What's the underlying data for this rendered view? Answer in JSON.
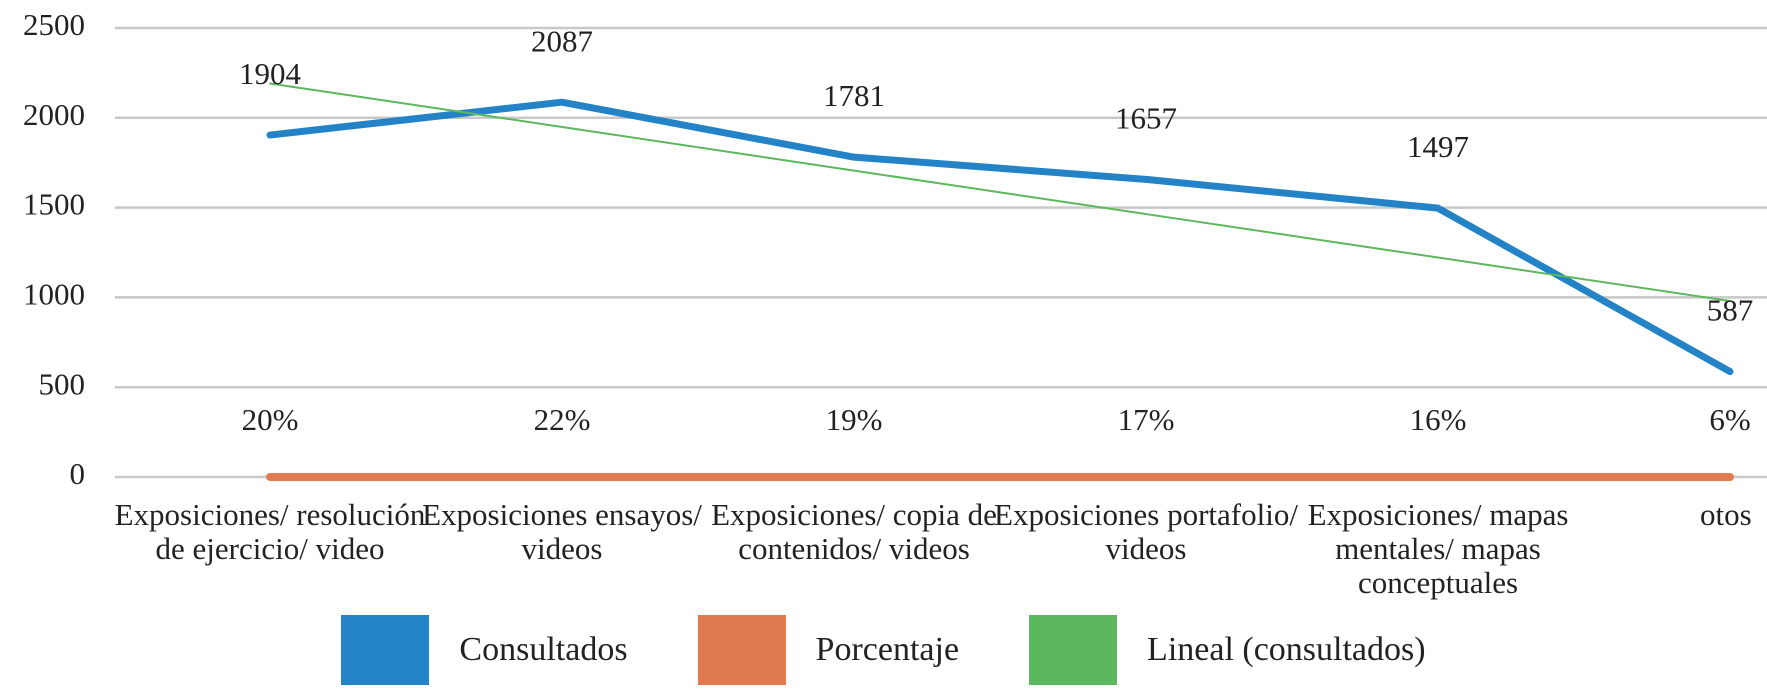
{
  "chart_data": {
    "type": "line",
    "categories": [
      "Exposiciones/ resolución de ejercicio/ video",
      "Exposiciones ensayos/ videos",
      "Exposiciones/ copia de contenidos/ videos",
      "Exposiciones portafolio/ videos",
      "Exposiciones/ mapas mentales/ mapas conceptuales",
      "otos"
    ],
    "series": [
      {
        "name": "Consultados",
        "color": "#2383c6",
        "values": [
          1904,
          2087,
          1781,
          1657,
          1497,
          587
        ],
        "labels_shown": true
      },
      {
        "name": "Porcentaje",
        "color": "#e07b4f",
        "values": [
          0.2,
          0.22,
          0.19,
          0.17,
          0.16,
          0.06
        ],
        "value_labels": [
          "20%",
          "22%",
          "19%",
          "17%",
          "16%",
          "6%"
        ]
      },
      {
        "name": "Lineal  (consultados)",
        "color": "#5cb85c",
        "values": [
          2191,
          1949,
          1706,
          1464,
          1222,
          980
        ]
      }
    ],
    "ylim": [
      0,
      2500
    ],
    "yticks": [
      0,
      500,
      1000,
      1500,
      2000,
      2500
    ],
    "grid": true
  }
}
